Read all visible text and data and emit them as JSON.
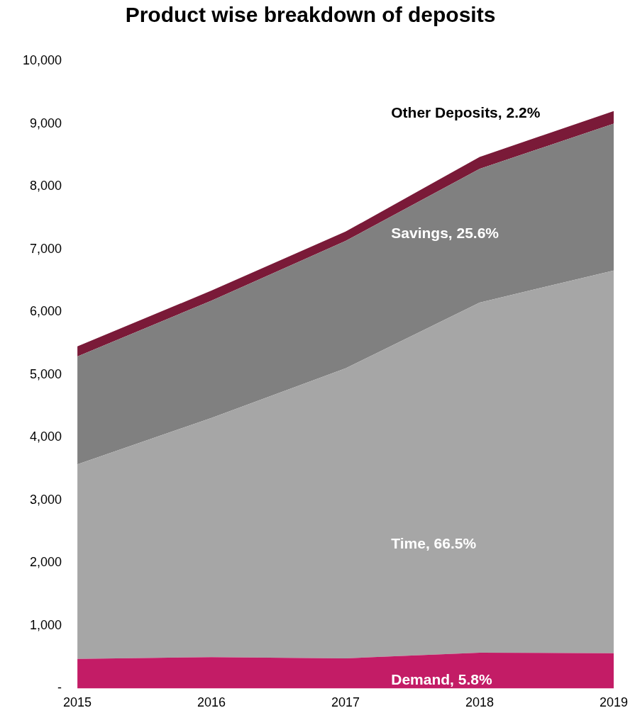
{
  "chart_data": {
    "type": "area",
    "stacked": true,
    "title": "Product wise breakdown of deposits",
    "categories": [
      "2015",
      "2016",
      "2017",
      "2018",
      "2019"
    ],
    "series": [
      {
        "name": "Demand, 5.8%",
        "color": "#c31c66",
        "values": [
          470,
          500,
          480,
          570,
          560
        ]
      },
      {
        "name": "Time, 66.5%",
        "color": "#a6a6a6",
        "values": [
          3100,
          3810,
          4620,
          5580,
          6100
        ]
      },
      {
        "name": "Savings, 25.6%",
        "color": "#808080",
        "values": [
          1720,
          1870,
          2030,
          2130,
          2340
        ]
      },
      {
        "name": "Other Deposits, 2.2%",
        "color": "#7a1a38",
        "values": [
          160,
          160,
          150,
          190,
          200
        ]
      }
    ],
    "ylim": [
      0,
      10000
    ],
    "yticks": [
      {
        "value": 0,
        "label": "-"
      },
      {
        "value": 1000,
        "label": "1,000"
      },
      {
        "value": 2000,
        "label": "2,000"
      },
      {
        "value": 3000,
        "label": "3,000"
      },
      {
        "value": 4000,
        "label": "4,000"
      },
      {
        "value": 5000,
        "label": "5,000"
      },
      {
        "value": 6000,
        "label": "6,000"
      },
      {
        "value": 7000,
        "label": "7,000"
      },
      {
        "value": 8000,
        "label": "8,000"
      },
      {
        "value": 9000,
        "label": "9,000"
      },
      {
        "value": 10000,
        "label": "10,000"
      }
    ],
    "grid": false,
    "legend": false
  }
}
